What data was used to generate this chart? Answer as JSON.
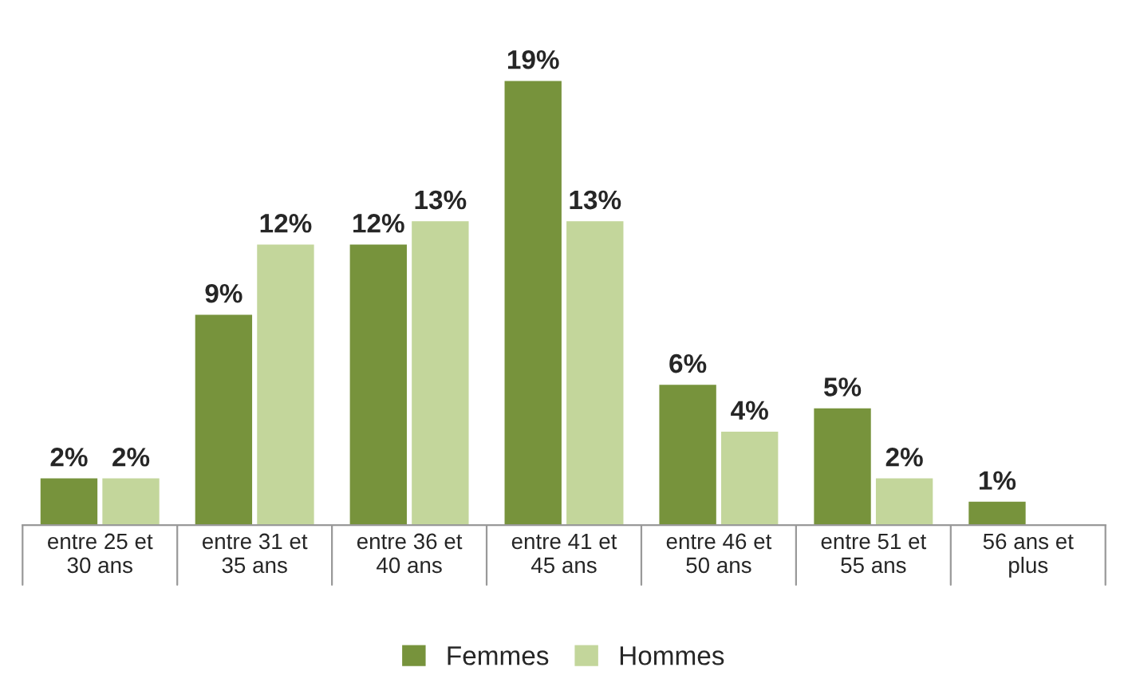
{
  "chart_data": {
    "type": "bar",
    "categories": [
      "entre 25 et\n30 ans",
      "entre 31 et\n35 ans",
      "entre 36 et\n40 ans",
      "entre 41 et\n45 ans",
      "entre 46 et\n50 ans",
      "entre 51 et\n55 ans",
      "56 ans et\nplus"
    ],
    "series": [
      {
        "name": "Femmes",
        "color": "#77933c",
        "values": [
          2,
          9,
          12,
          19,
          6,
          5,
          1
        ],
        "value_labels": [
          "2%",
          "9%",
          "12%",
          "19%",
          "6%",
          "5%",
          "1%"
        ]
      },
      {
        "name": "Hommes",
        "color": "#c3d69b",
        "values": [
          2,
          12,
          13,
          13,
          4,
          2,
          null
        ],
        "value_labels": [
          "2%",
          "12%",
          "13%",
          "13%",
          "4%",
          "2%",
          null
        ]
      }
    ],
    "legend": "bottom",
    "grid": false
  }
}
